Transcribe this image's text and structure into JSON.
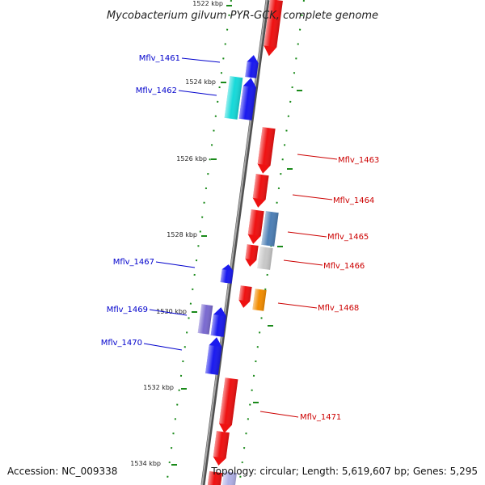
{
  "title": "Mycobacterium gilvum PYR-GCK, complete genome",
  "footer": {
    "accession": "Accession: NC_009338",
    "summary": "Topology: circular; Length: 5,619,607 bp; Genes: 5,295"
  },
  "colors": {
    "forward_strand": "#0000ee",
    "reverse_strand": "#ee0000",
    "backbone": "#808080",
    "ticks": "#1a8a1a"
  },
  "scale_labels": [
    "1522 kbp",
    "1524 kbp",
    "1526 kbp",
    "1528 kbp",
    "1530 kbp",
    "1532 kbp",
    "1534 kbp"
  ],
  "genes": [
    {
      "label": "Mflv_1461",
      "strand": "forward",
      "color": "#1a1aee"
    },
    {
      "label": "Mflv_1462",
      "strand": "forward",
      "color": "#16d9d9"
    },
    {
      "label": "Mflv_1463",
      "strand": "reverse",
      "color": "#ee1111"
    },
    {
      "label": "Mflv_1464",
      "strand": "reverse",
      "color": "#ee1111"
    },
    {
      "label": "Mflv_1465",
      "strand": "reverse",
      "color": "#4d7fb5"
    },
    {
      "label": "Mflv_1466",
      "strand": "reverse",
      "color": "#c8c8c8"
    },
    {
      "label": "Mflv_1467",
      "strand": "forward",
      "color": "#1a1aee"
    },
    {
      "label": "Mflv_1468",
      "strand": "reverse",
      "color": "#f28c00"
    },
    {
      "label": "Mflv_1469",
      "strand": "forward",
      "color": "#7a6ad0"
    },
    {
      "label": "Mflv_1470",
      "strand": "forward",
      "color": "#1a1aee"
    },
    {
      "label": "Mflv_1471",
      "strand": "reverse",
      "color": "#ee1111"
    }
  ]
}
